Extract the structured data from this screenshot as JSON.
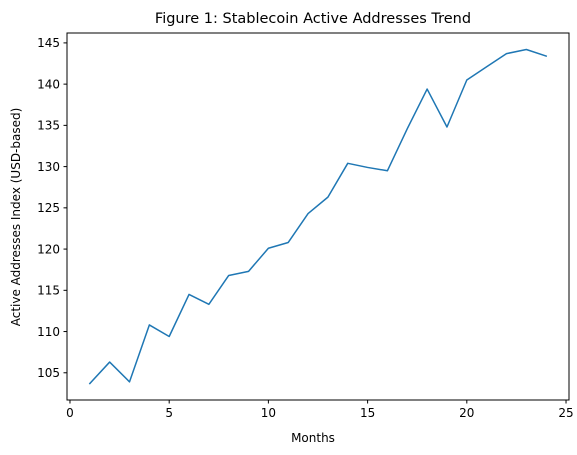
{
  "chart_data": {
    "type": "line",
    "title": "Figure 1: Stablecoin Active Addresses Trend",
    "xlabel": "Months",
    "ylabel": "Active Addresses Index (USD-based)",
    "xlim": [
      -0.15,
      25.15
    ],
    "ylim": [
      101.7,
      146.2
    ],
    "xticks": [
      0,
      5,
      10,
      15,
      20,
      25
    ],
    "yticks": [
      105,
      110,
      115,
      120,
      125,
      130,
      135,
      140,
      145
    ],
    "grid": false,
    "legend": "none",
    "series": [
      {
        "color": "#1f77b4",
        "x": [
          1,
          2,
          3,
          4,
          5,
          6,
          7,
          8,
          9,
          10,
          11,
          12,
          13,
          14,
          15,
          16,
          17,
          18,
          19,
          20,
          21,
          22,
          23,
          24
        ],
        "y": [
          103.7,
          106.3,
          103.9,
          110.8,
          109.4,
          114.5,
          113.3,
          116.8,
          117.3,
          120.1,
          120.8,
          124.3,
          126.3,
          130.4,
          129.9,
          129.5,
          134.6,
          139.4,
          134.8,
          140.5,
          142.1,
          143.7,
          144.2,
          143.4
        ]
      }
    ]
  }
}
